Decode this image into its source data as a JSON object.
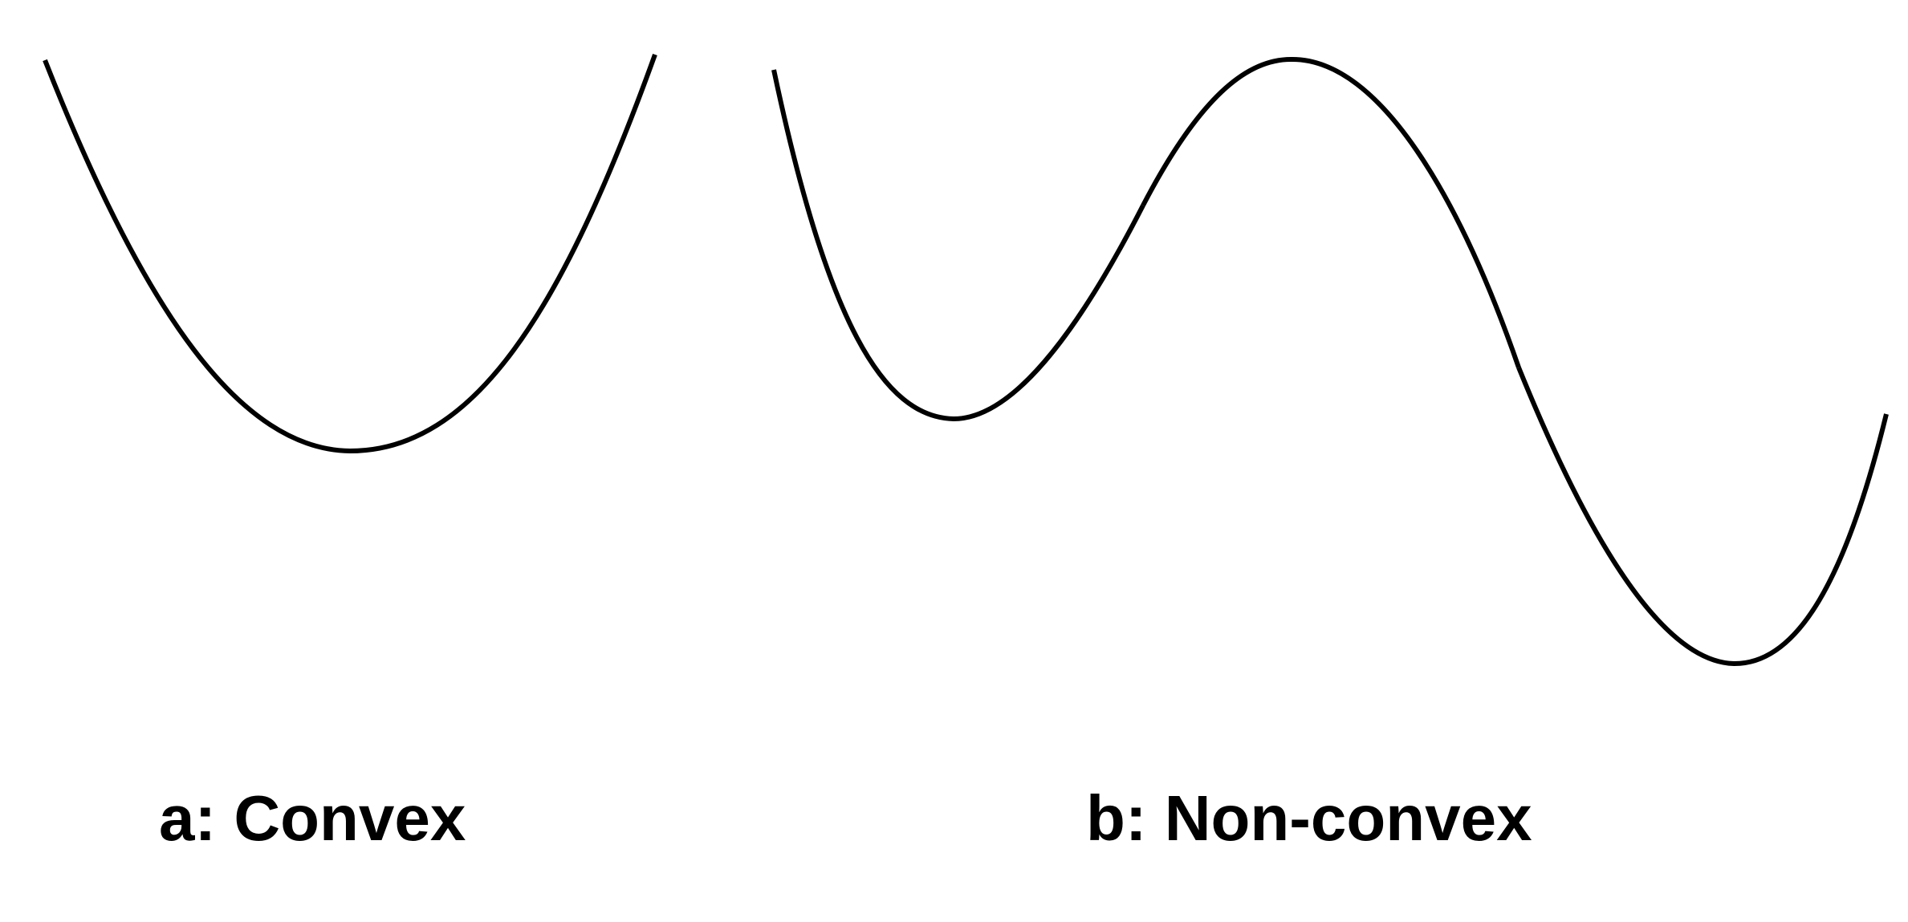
{
  "panels": [
    {
      "id": "a",
      "caption": "a: Convex",
      "curve_kind": "convex",
      "stroke_color": "#000000"
    },
    {
      "id": "b",
      "caption": "b: Non-convex",
      "curve_kind": "non-convex",
      "stroke_color": "#000000"
    }
  ]
}
